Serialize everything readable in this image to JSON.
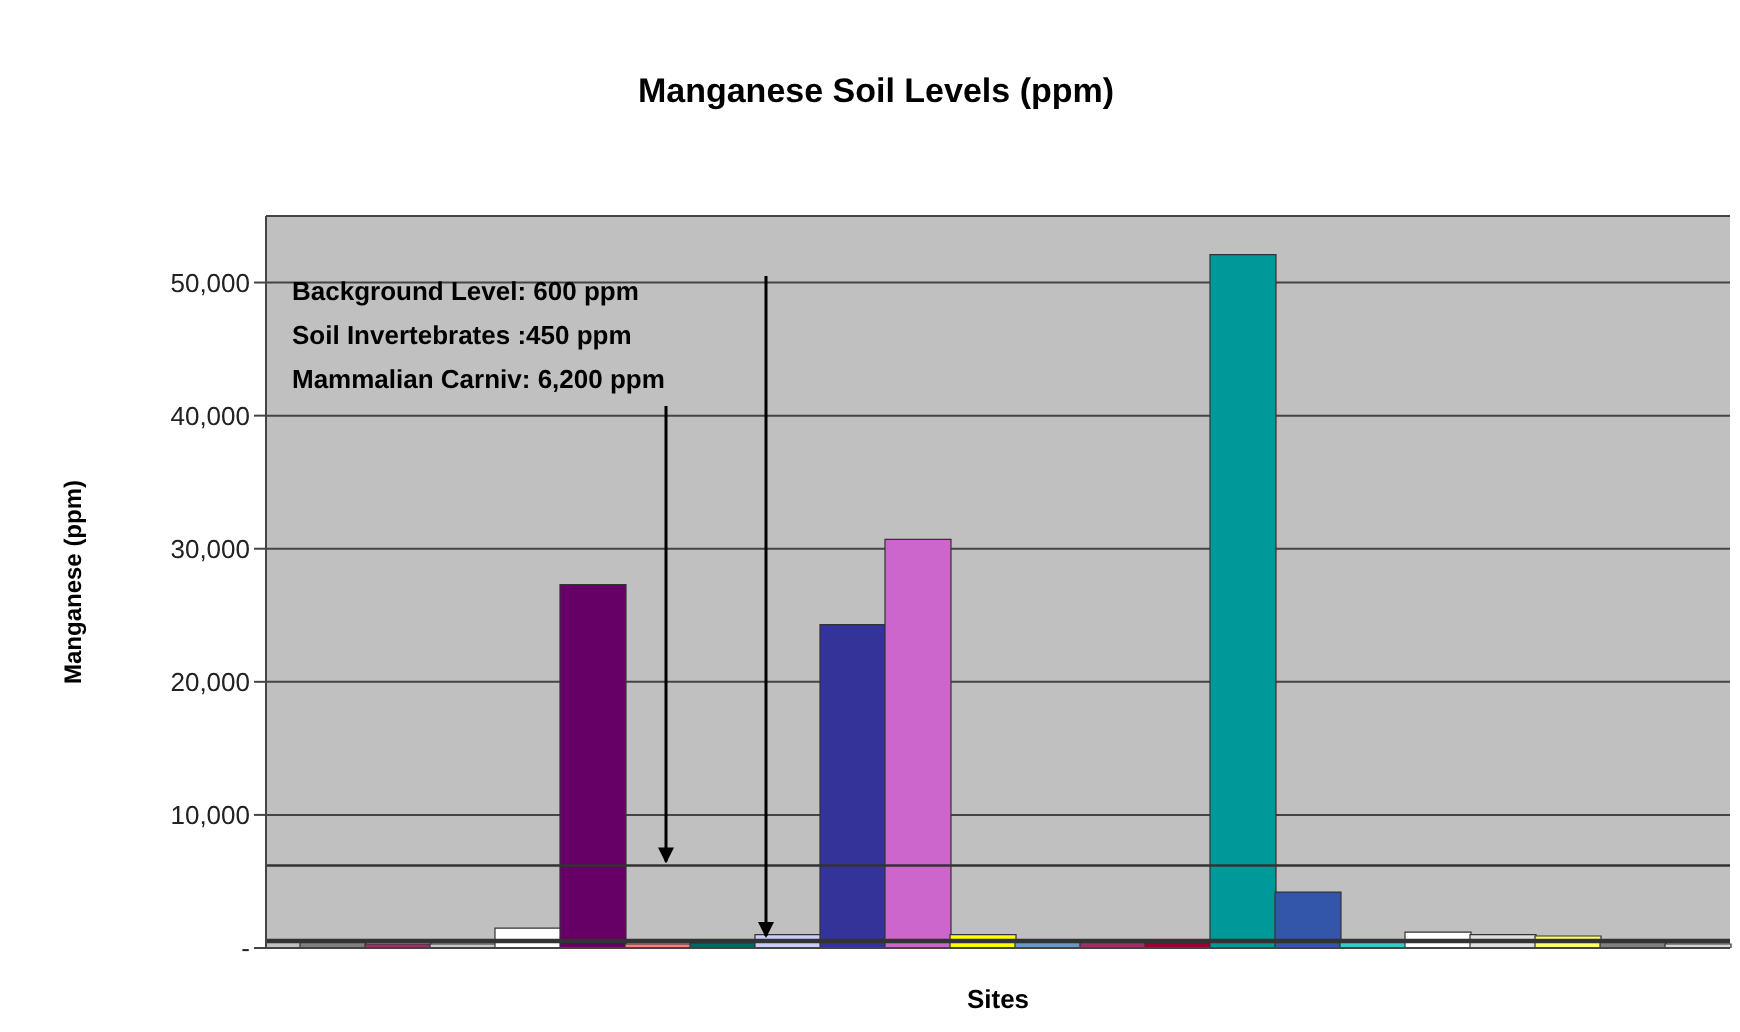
{
  "chart_data": {
    "type": "bar",
    "title": "Manganese Soil Levels (ppm)",
    "xlabel": "Sites",
    "ylabel": "Manganese (ppm)",
    "categories": [
      null,
      null,
      null,
      null,
      null,
      null,
      null,
      null,
      null,
      null,
      null,
      null,
      null,
      null,
      null,
      null,
      null,
      null,
      null,
      null,
      null,
      null
    ],
    "values": [
      500,
      300,
      300,
      1500,
      27300,
      300,
      400,
      1000,
      24300,
      30700,
      1000,
      500,
      500,
      500,
      52100,
      4200,
      500,
      1200,
      1000,
      900,
      500,
      300
    ],
    "colors": [
      "#808080",
      "#993366",
      "#c8c8c8",
      "#ffffff",
      "#660066",
      "#ff8080",
      "#006666",
      "#ccccff",
      "#333399",
      "#cc66cc",
      "#ffff00",
      "#6699cc",
      "#993366",
      "#990033",
      "#009999",
      "#3355aa",
      "#33cccc",
      "#ffffff",
      "#e0e0e0",
      "#ffff66",
      "#808080",
      "#d8d8d8"
    ],
    "ylim": [
      0,
      55000
    ],
    "yticks": [
      {
        "value": 0,
        "label": "-"
      },
      {
        "value": 10000,
        "label": "10,000"
      },
      {
        "value": 20000,
        "label": "20,000"
      },
      {
        "value": 30000,
        "label": "30,000"
      },
      {
        "value": 40000,
        "label": "40,000"
      },
      {
        "value": 50000,
        "label": "50,000"
      }
    ],
    "grid": "y",
    "ref_lines": [
      {
        "axis": "y",
        "value": 6200,
        "color": "#333333"
      },
      {
        "axis": "y",
        "value": 600,
        "color": "#333333"
      },
      {
        "axis": "y",
        "value": 450,
        "color": "#333333"
      }
    ],
    "annotations": [
      "Background Level: 600 ppm",
      "Soil Invertebrates :450 ppm",
      "Mammalian Carniv: 6,200 ppm"
    ]
  }
}
